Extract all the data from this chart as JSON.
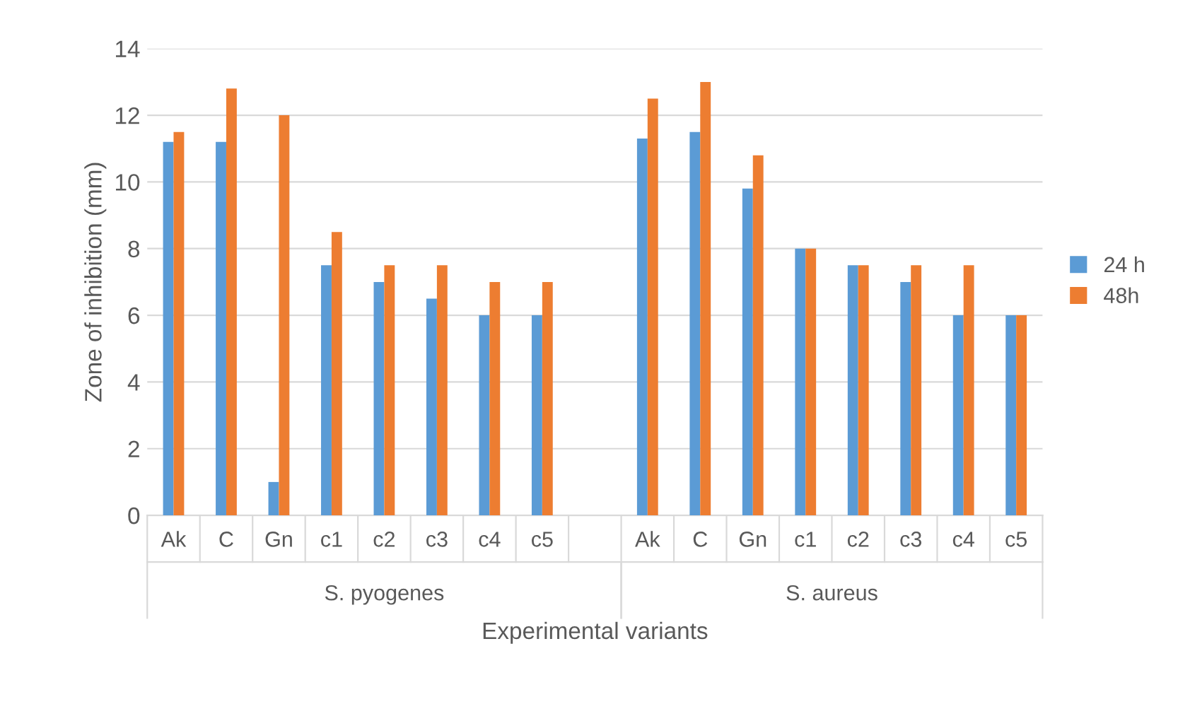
{
  "chart_data": {
    "type": "bar",
    "xlabel": "Experimental variants",
    "ylabel": "Zone of inhibition (mm)",
    "categories": [
      "Ak",
      "C",
      "Gn",
      "c1",
      "c2",
      "c3",
      "c4",
      "c5",
      null,
      "Ak",
      "C",
      "Gn",
      "c1",
      "c2",
      "c3",
      "c4",
      "c5"
    ],
    "series": [
      {
        "name": "24 h",
        "color": "#5b9bd5",
        "values": [
          11.2,
          11.2,
          1.0,
          7.5,
          7.0,
          6.5,
          6.0,
          6.0,
          null,
          11.3,
          11.5,
          9.8,
          8.0,
          7.5,
          7.0,
          6.0,
          6.0
        ]
      },
      {
        "name": "48h",
        "color": "#ed7d31",
        "values": [
          11.5,
          12.8,
          12.0,
          8.5,
          7.5,
          7.5,
          7.0,
          7.0,
          null,
          12.5,
          13.0,
          10.8,
          8.0,
          7.5,
          7.5,
          7.5,
          6.0
        ]
      }
    ],
    "annotations": [
      "S. pyogenes",
      "S. aureus"
    ],
    "ylim": [
      0,
      14
    ],
    "yticks": [
      0,
      2,
      4,
      6,
      8,
      10,
      12,
      14
    ],
    "grid": "y",
    "legend": "right"
  }
}
